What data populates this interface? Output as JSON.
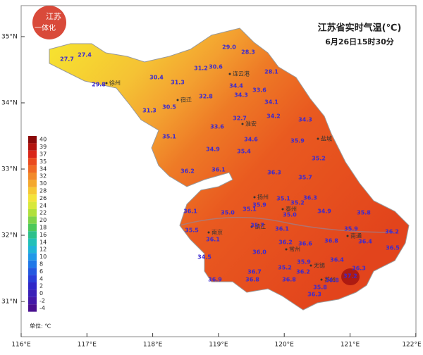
{
  "logo": [
    "江苏",
    "一体化"
  ],
  "title": "江苏省实时气温(℃)",
  "subtitle": "6月26日15时30分",
  "lat_labels": [
    "35°N",
    "34°N",
    "33°N",
    "32°N",
    "31°N"
  ],
  "lon_labels": [
    "116°E",
    "117°E",
    "118°E",
    "119°E",
    "120°E",
    "121°E",
    "122°E"
  ],
  "legend": {
    "unit": "单位: ℃",
    "levels": [
      40,
      39,
      37,
      35,
      34,
      32,
      30,
      28,
      26,
      24,
      22,
      20,
      18,
      16,
      14,
      12,
      10,
      8,
      6,
      4,
      2,
      0,
      -2,
      -4
    ],
    "colors": [
      "#8b0a0a",
      "#b3140f",
      "#d9261a",
      "#ea4a1e",
      "#f06a24",
      "#f28a2a",
      "#f4a82e",
      "#f6c834",
      "#f4e43a",
      "#d8e83a",
      "#b0e03c",
      "#7ed44a",
      "#4cc85a",
      "#2cc08a",
      "#22c0b8",
      "#20b4d8",
      "#2098e8",
      "#2078e8",
      "#2458e0",
      "#2a3ed8",
      "#3028c8",
      "#3a20b8",
      "#4418a8",
      "#4a1090"
    ]
  },
  "cities": [
    "徐州",
    "连云港",
    "宿迁",
    "淮安",
    "盐城",
    "扬州",
    "泰州",
    "南通",
    "镇江",
    "常州",
    "南京",
    "无锡",
    "苏州"
  ],
  "readings": [
    "27.7",
    "27.4",
    "29.0",
    "28.3",
    "30.4",
    "31.2",
    "30.6",
    "28.1",
    "29.8",
    "31.3",
    "34.4",
    "32.8",
    "33.6",
    "34.3",
    "30.5",
    "34.1",
    "31.3",
    "32.7",
    "34.2",
    "33.6",
    "34.3",
    "35.1",
    "34.6",
    "35.9",
    "34.9",
    "35.4",
    "35.2",
    "36.2",
    "36.1",
    "36.3",
    "35.7",
    "35.1",
    "35.2",
    "36.3",
    "35.1",
    "35.9",
    "36.1",
    "35.0",
    "35.0",
    "34.9",
    "35.8",
    "36.1",
    "35.7",
    "35.5",
    "35.9",
    "36.2",
    "36.1",
    "36.2",
    "36.6",
    "36.4",
    "36.8",
    "36.5",
    "36.0",
    "34.5",
    "36.4",
    "35.9",
    "36.3",
    "36.7",
    "36.2",
    "35.2",
    "36.8",
    "36.9",
    "36.8",
    "36.8",
    "35.8",
    "36.3",
    "37.2"
  ]
}
